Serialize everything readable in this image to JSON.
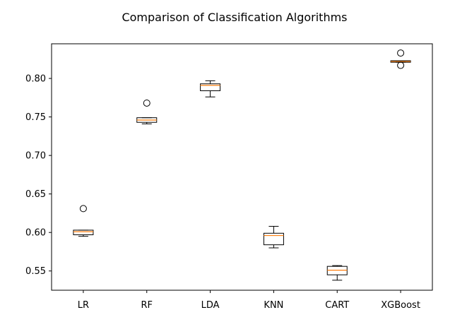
{
  "chart_data": {
    "type": "box",
    "title": "Comparison of Classification Algorithms",
    "xlabel": "",
    "ylabel": "",
    "ylim": [
      0.525,
      0.845
    ],
    "yticks": [
      0.55,
      0.6,
      0.65,
      0.7,
      0.75,
      0.8
    ],
    "ytick_labels": [
      "0.55",
      "0.60",
      "0.65",
      "0.70",
      "0.75",
      "0.80"
    ],
    "categories": [
      "LR",
      "RF",
      "LDA",
      "KNN",
      "CART",
      "XGBoost"
    ],
    "boxes": [
      {
        "label": "LR",
        "whisker_low": 0.595,
        "q1": 0.597,
        "median": 0.601,
        "q3": 0.603,
        "whisker_high": 0.603,
        "outliers": [
          0.631
        ]
      },
      {
        "label": "RF",
        "whisker_low": 0.741,
        "q1": 0.743,
        "median": 0.746,
        "q3": 0.749,
        "whisker_high": 0.749,
        "outliers": [
          0.768
        ]
      },
      {
        "label": "LDA",
        "whisker_low": 0.776,
        "q1": 0.784,
        "median": 0.791,
        "q3": 0.793,
        "whisker_high": 0.797,
        "outliers": []
      },
      {
        "label": "KNN",
        "whisker_low": 0.58,
        "q1": 0.584,
        "median": 0.596,
        "q3": 0.599,
        "whisker_high": 0.608,
        "outliers": []
      },
      {
        "label": "CART",
        "whisker_low": 0.538,
        "q1": 0.545,
        "median": 0.551,
        "q3": 0.556,
        "whisker_high": 0.557,
        "outliers": []
      },
      {
        "label": "XGBoost",
        "whisker_low": 0.821,
        "q1": 0.821,
        "median": 0.822,
        "q3": 0.823,
        "whisker_high": 0.823,
        "outliers": [
          0.817,
          0.833
        ]
      }
    ],
    "grid": false,
    "colors": {
      "box": "#000000",
      "median": "#ff7f0e",
      "outlier": "#000000"
    }
  }
}
